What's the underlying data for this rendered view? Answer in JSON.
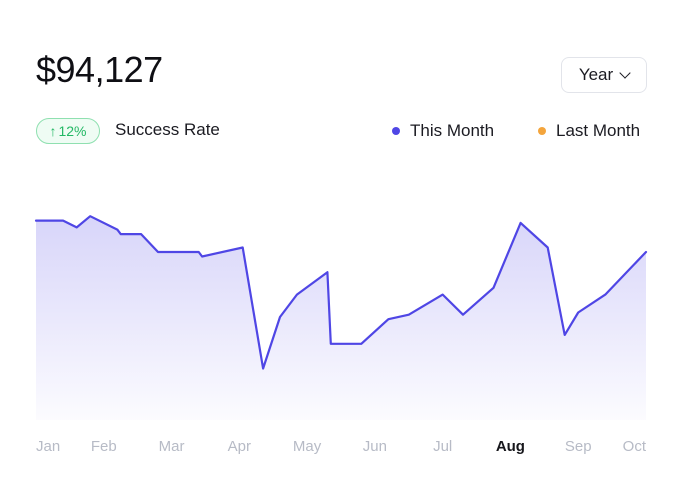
{
  "header": {
    "total": "$94,127",
    "period": "Year"
  },
  "badge": {
    "arrow": "↑",
    "change": "12%",
    "label": "Success Rate"
  },
  "legend": [
    {
      "name": "This Month",
      "color": "#4f46e5"
    },
    {
      "name": "Last Month",
      "color": "#f4a53c"
    }
  ],
  "icons": {
    "period_chevron": "chevron-down-icon",
    "badge_arrow": "arrow-up-icon"
  },
  "chart_data": {
    "type": "area",
    "x_categories": [
      "Jan",
      "Feb",
      "Mar",
      "Apr",
      "May",
      "Jun",
      "Jul",
      "Aug",
      "Sep",
      "Oct"
    ],
    "active_category": "Aug",
    "ylim": [
      0,
      100
    ],
    "grid": false,
    "legend_position": "top-right",
    "series": [
      {
        "name": "This Month",
        "color": "#4f46e5",
        "x": [
          0,
          0.4,
          0.6,
          0.8,
          1.2,
          1.25,
          1.55,
          1.8,
          2.4,
          2.45,
          3.05,
          3.35,
          3.6,
          3.85,
          4.3,
          4.35,
          4.8,
          5.2,
          5.5,
          6.0,
          6.3,
          6.75,
          7.15,
          7.55,
          7.8,
          8.0,
          8.4,
          9.0
        ],
        "values": [
          89,
          89,
          86,
          91,
          85,
          83,
          83,
          75,
          75,
          73,
          77,
          23,
          46,
          56,
          66,
          34,
          34,
          45,
          47,
          56,
          47,
          59,
          88,
          77,
          38,
          48,
          56,
          75
        ]
      }
    ]
  }
}
